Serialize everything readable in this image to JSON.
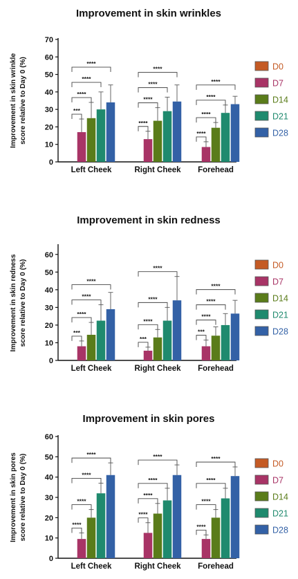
{
  "colors": {
    "D0": "#c45a24",
    "D7": "#a83466",
    "D14": "#5a7c1a",
    "D21": "#1f8a6e",
    "D28": "#3361a6"
  },
  "chart_data": [
    {
      "type": "bar",
      "title": "Improvement in skin wrinkles",
      "ylabel": [
        "Improvement in skin wrinkle",
        "score relative to Day 0 (%)"
      ],
      "ylim": [
        0,
        70
      ],
      "yticks": [
        0,
        10,
        20,
        30,
        40,
        50,
        60,
        70
      ],
      "categories": [
        "Left Cheek",
        "Right Cheek",
        "Forehead"
      ],
      "legend_position": "right",
      "series": [
        {
          "name": "D0",
          "values": [
            0,
            0,
            0
          ],
          "errors": [
            0,
            0,
            0
          ]
        },
        {
          "name": "D7",
          "values": [
            17,
            13,
            8.5
          ],
          "errors": [
            7.5,
            4.5,
            3
          ]
        },
        {
          "name": "D14",
          "values": [
            25,
            23.5,
            19.5
          ],
          "errors": [
            9,
            7.5,
            3
          ]
        },
        {
          "name": "D21",
          "values": [
            30,
            29,
            28
          ],
          "errors": [
            10,
            8,
            4.5
          ]
        },
        {
          "name": "D28",
          "values": [
            34,
            34.5,
            33
          ],
          "errors": [
            10,
            9.5,
            4.5
          ]
        }
      ],
      "significance": [
        [
          "***",
          "****",
          "****",
          "****"
        ],
        [
          "****",
          "****",
          "****",
          "****"
        ],
        [
          "****",
          "****",
          "****",
          "****"
        ]
      ]
    },
    {
      "type": "bar",
      "title": "Improvement in skin redness",
      "ylabel": [
        "Improvement in skin redness",
        "score relative to Day 0 (%)"
      ],
      "ylim": [
        0,
        65
      ],
      "yticks": [
        0,
        10,
        20,
        30,
        40,
        50,
        60
      ],
      "categories": [
        "Left Cheek",
        "Right Cheek",
        "Forehead"
      ],
      "legend_position": "right",
      "series": [
        {
          "name": "D0",
          "values": [
            0,
            0,
            0
          ],
          "errors": [
            0,
            0,
            0
          ]
        },
        {
          "name": "D7",
          "values": [
            8,
            5.5,
            8
          ],
          "errors": [
            3,
            2,
            3.5
          ]
        },
        {
          "name": "D14",
          "values": [
            14.5,
            13,
            14
          ],
          "errors": [
            7,
            4.5,
            5
          ]
        },
        {
          "name": "D21",
          "values": [
            22.5,
            22.5,
            20
          ],
          "errors": [
            9,
            7.5,
            6.5
          ]
        },
        {
          "name": "D28",
          "values": [
            29,
            34,
            26.5
          ],
          "errors": [
            9.5,
            13.5,
            7.5
          ]
        }
      ],
      "significance": [
        [
          "***",
          "****",
          "****",
          "****"
        ],
        [
          "***",
          "****",
          "****",
          "****"
        ],
        [
          "***",
          "****",
          "****",
          "****"
        ]
      ]
    },
    {
      "type": "bar",
      "title": "Improvement in skin pores",
      "ylabel": [
        "Improvement in skin pores",
        "score relative to Day 0 (%)"
      ],
      "ylim": [
        0,
        60
      ],
      "yticks": [
        0,
        10,
        20,
        30,
        40,
        50,
        60
      ],
      "categories": [
        "Left Cheek",
        "Right Cheek",
        "Forehead"
      ],
      "legend_position": "right",
      "series": [
        {
          "name": "D0",
          "values": [
            0,
            0,
            0
          ],
          "errors": [
            0,
            0,
            0
          ]
        },
        {
          "name": "D7",
          "values": [
            9.5,
            12.5,
            9.5
          ],
          "errors": [
            3,
            5,
            2
          ]
        },
        {
          "name": "D14",
          "values": [
            20,
            22,
            20
          ],
          "errors": [
            4,
            5,
            4
          ]
        },
        {
          "name": "D21",
          "values": [
            32,
            28.5,
            29.5
          ],
          "errors": [
            5,
            6,
            5
          ]
        },
        {
          "name": "D28",
          "values": [
            41,
            41,
            40.5
          ],
          "errors": [
            6,
            5,
            4.5
          ]
        }
      ],
      "significance": [
        [
          "****",
          "****",
          "****",
          "****"
        ],
        [
          "****",
          "****",
          "****",
          "****"
        ],
        [
          "****",
          "****",
          "****",
          "****"
        ]
      ]
    }
  ]
}
